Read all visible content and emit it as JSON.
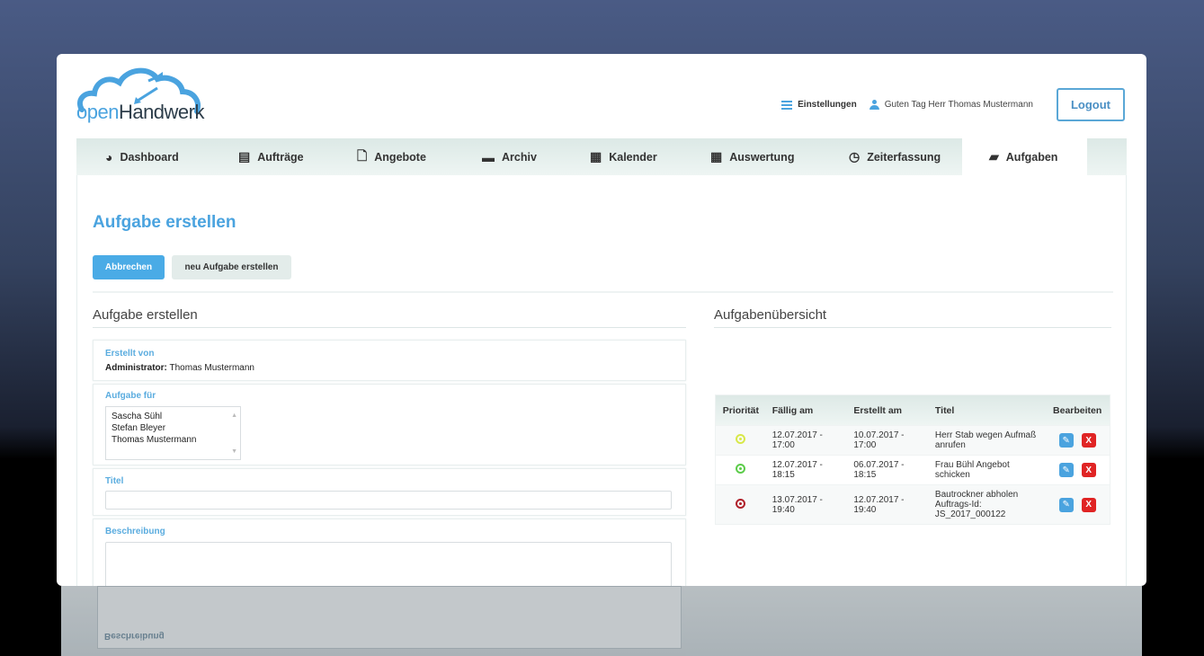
{
  "brand": {
    "logo_text_prefix": "open",
    "logo_text_suffix": "Handwerk",
    "accent": "#4aa3df"
  },
  "header": {
    "settings_label": "Einstellungen",
    "greeting": "Guten Tag Herr Thomas Mustermann",
    "logout_label": "Logout"
  },
  "nav": {
    "tabs": [
      {
        "label": "Dashboard",
        "icon": "dashboard-icon"
      },
      {
        "label": "Aufträge",
        "icon": "document-lines-icon"
      },
      {
        "label": "Angebote",
        "icon": "document-icon"
      },
      {
        "label": "Archiv",
        "icon": "archive-icon"
      },
      {
        "label": "Kalender",
        "icon": "calendar-icon"
      },
      {
        "label": "Auswertung",
        "icon": "table-icon"
      },
      {
        "label": "Zeiterfassung",
        "icon": "clock-icon"
      },
      {
        "label": "Aufgaben",
        "icon": "book-icon",
        "active": true
      }
    ]
  },
  "page": {
    "title": "Aufgabe erstellen",
    "cancel_label": "Abbrechen",
    "new_label": "neu Aufgabe erstellen"
  },
  "form": {
    "section_title": "Aufgabe erstellen",
    "created_by_label": "Erstellt von",
    "created_by_role": "Administrator:",
    "created_by_name": "Thomas Mustermann",
    "assignee_label": "Aufgabe für",
    "assignees": [
      "Sascha Sühl",
      "Stefan Bleyer",
      "Thomas Mustermann"
    ],
    "title_label": "Titel",
    "title_value": "",
    "description_label": "Beschreibung",
    "description_value": ""
  },
  "overview": {
    "section_title": "Aufgabenübersicht",
    "columns": [
      "Priorität",
      "Fällig am",
      "Erstellt am",
      "Titel",
      "Bearbeiten"
    ],
    "rows": [
      {
        "priority": "yellow",
        "priority_color": "#d8e84a",
        "due": "12.07.2017 - 17:00",
        "created": "10.07.2017 - 17:00",
        "title": "Herr Stab wegen Aufmaß anrufen"
      },
      {
        "priority": "green",
        "priority_color": "#5ccc4a",
        "due": "12.07.2017 - 18:15",
        "created": "06.07.2017 - 18:15",
        "title": "Frau Bühl Angebot schicken"
      },
      {
        "priority": "red",
        "priority_color": "#b0202a",
        "due": "13.07.2017 - 19:40",
        "created": "12.07.2017 - 19:40",
        "title": "Bautrockner abholen Auftrags-Id: JS_2017_000122"
      }
    ],
    "edit_icon": "pencil-icon",
    "delete_icon": "x-icon",
    "delete_glyph": "X"
  }
}
